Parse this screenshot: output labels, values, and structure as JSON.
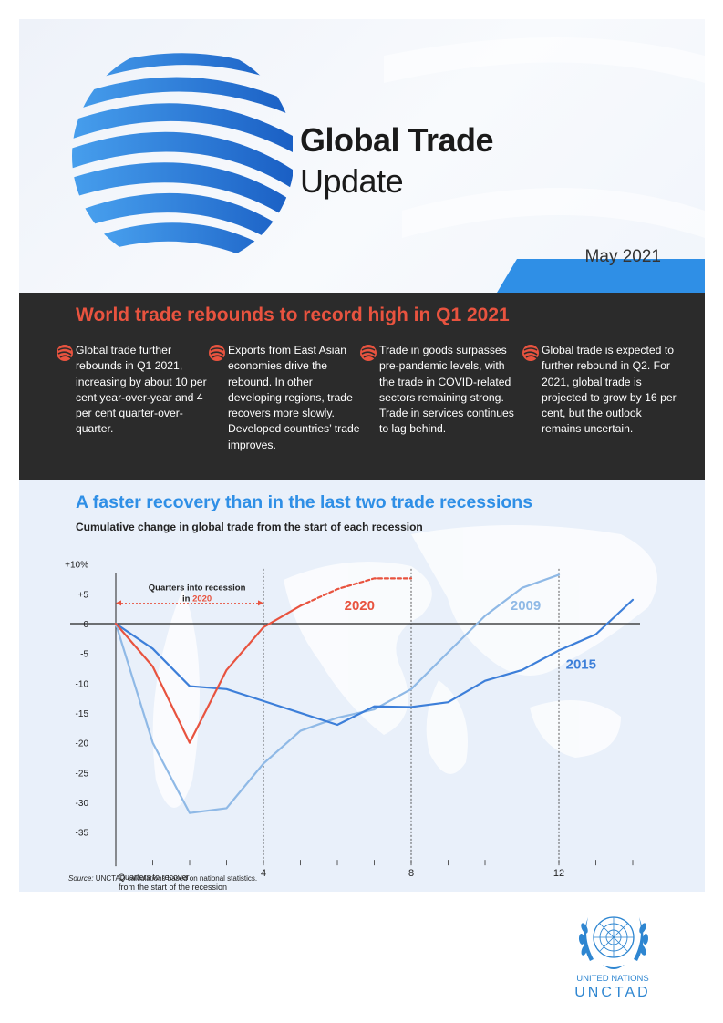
{
  "header": {
    "title_main": "Global Trade",
    "title_sub": "Update",
    "date": "May 2021",
    "accent_color": "#2f8fe6"
  },
  "highlights": {
    "title": "World trade rebounds to record high in Q1 2021",
    "title_color": "#e8533f",
    "points": [
      {
        "icon": "globe-swoosh-icon",
        "text": "Global trade further rebounds in Q1 2021, increasing by about 10 per cent year-over-year and 4 per cent quarter-over-quarter."
      },
      {
        "icon": "globe-swoosh-icon",
        "text": "Exports from East Asian economies drive the rebound. In other developing regions, trade recovers more slowly. Developed countries’ trade improves."
      },
      {
        "icon": "globe-swoosh-icon",
        "text": "Trade in goods surpasses pre-pandemic levels, with the trade in COVID-related sectors remaining strong. Trade in services continues to lag behind."
      },
      {
        "icon": "globe-swoosh-icon",
        "text": "Global trade is expected to further rebound in Q2. For 2021, global trade is projected to grow by 16 per cent, but the outlook remains uncertain."
      }
    ]
  },
  "chart": {
    "title": "A faster recovery than in the last two trade recessions",
    "subtitle": "Cumulative change in global trade from the start of each recession",
    "source_label": "Source:",
    "source_text": " UNCTAD calculations based on national statistics."
  },
  "chart_data": {
    "type": "line",
    "xlim": [
      0,
      14
    ],
    "ylim": [
      -38,
      10
    ],
    "y_ticks": [
      {
        "value": 10,
        "label": "+10%"
      },
      {
        "value": 5,
        "label": "+5"
      },
      {
        "value": 0,
        "label": "0"
      },
      {
        "value": -5,
        "label": "-5"
      },
      {
        "value": -10,
        "label": "-10"
      },
      {
        "value": -15,
        "label": "-15"
      },
      {
        "value": -20,
        "label": "-20"
      },
      {
        "value": -25,
        "label": "-25"
      },
      {
        "value": -30,
        "label": "-30"
      },
      {
        "value": -35,
        "label": "-35"
      }
    ],
    "x_ticks": [
      {
        "value": 4,
        "label": "4"
      },
      {
        "value": 8,
        "label": "8"
      },
      {
        "value": 12,
        "label": "12"
      }
    ],
    "x_minor": [
      1,
      2,
      3,
      5,
      6,
      7,
      9,
      10,
      11,
      13,
      14
    ],
    "vlines": [
      4,
      8,
      12
    ],
    "grid": false,
    "series": [
      {
        "name": "2009",
        "color": "#8fb9e6",
        "x": [
          0,
          1,
          2,
          3,
          4,
          5,
          6,
          7,
          8,
          9,
          10,
          11,
          12
        ],
        "y": [
          0,
          -20,
          -31.8,
          -31,
          -23.5,
          -18,
          -15.8,
          -14.4,
          -11,
          -4.8,
          1.3,
          6,
          8.2
        ]
      },
      {
        "name": "2015",
        "color": "#3d7fd9",
        "x": [
          0,
          1,
          2,
          3,
          4,
          5,
          6,
          7,
          8,
          9,
          10,
          11,
          12,
          13,
          14
        ],
        "y": [
          0,
          -4.2,
          -10.5,
          -11,
          -13,
          -15,
          -17,
          -13.9,
          -14,
          -13.2,
          -9.6,
          -7.8,
          -4.5,
          -1.8,
          4
        ]
      },
      {
        "name": "2020",
        "color": "#e8533f",
        "x": [
          0,
          1,
          2,
          3,
          4,
          5
        ],
        "y": [
          0,
          -7.2,
          -20,
          -7.8,
          -0.6,
          3
        ]
      },
      {
        "name": "",
        "color": "#e8533f",
        "dashed": true,
        "x": [
          5,
          6,
          7,
          8
        ],
        "y": [
          3,
          5.8,
          7.6,
          7.6
        ]
      }
    ],
    "labels": [
      {
        "text": "2020",
        "color": "#e8533f",
        "x": 6.6,
        "y": 2.3
      },
      {
        "text": "2009",
        "color": "#8fb9e6",
        "x": 11.1,
        "y": 2.3
      },
      {
        "text": "2015",
        "color": "#3d7fd9",
        "x": 12.6,
        "y": -7.6
      }
    ],
    "annotations": {
      "quarters_into_line1": "Quarters into recession",
      "quarters_into_prefix": "in ",
      "quarters_into_year": "2020",
      "quarters_recover_line1": "Quarters to recover",
      "quarters_recover_line2": "from the start of the recession"
    }
  },
  "footer": {
    "org_name": "UNITED NATIONS",
    "org_short": "UNCTAD",
    "logo_icon": "un-emblem-icon"
  }
}
